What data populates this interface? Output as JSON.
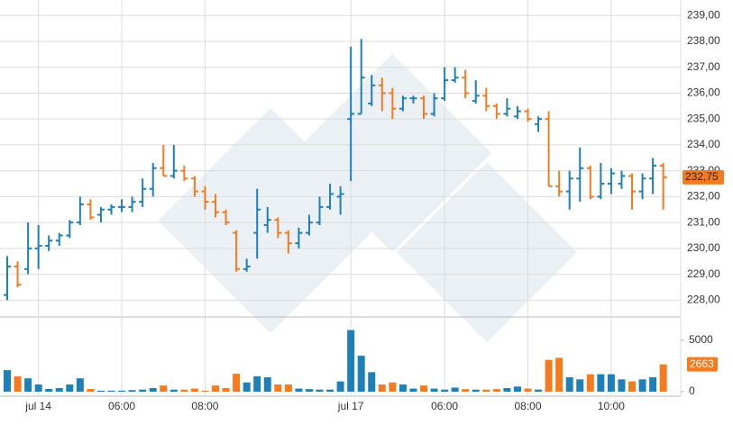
{
  "chart_data": {
    "type": "ohlc",
    "categories": [
      null,
      null,
      null,
      "jul 14",
      null,
      null,
      null,
      null,
      null,
      null,
      null,
      "06:00",
      null,
      null,
      null,
      null,
      null,
      null,
      null,
      "08:00",
      null,
      null,
      null,
      null,
      null,
      null,
      null,
      null,
      null,
      null,
      null,
      null,
      null,
      "jul 17",
      null,
      null,
      null,
      null,
      null,
      null,
      null,
      null,
      "06:00",
      null,
      null,
      null,
      null,
      null,
      null,
      null,
      "08:00",
      null,
      null,
      null,
      null,
      null,
      null,
      null,
      "10:00",
      null,
      null,
      null,
      null,
      null
    ],
    "open": [
      228.2,
      229.3,
      229.2,
      230.0,
      230.1,
      230.3,
      230.5,
      231.0,
      231.7,
      231.3,
      231.5,
      231.6,
      231.6,
      231.8,
      232.3,
      233.1,
      232.8,
      233.0,
      232.7,
      232.2,
      231.8,
      231.4,
      230.6,
      229.2,
      230.6,
      230.9,
      231.1,
      230.6,
      230.2,
      230.6,
      231.0,
      231.6,
      232.0,
      235.0,
      235.2,
      235.6,
      236.3,
      236.0,
      235.4,
      235.8,
      235.8,
      235.2,
      235.8,
      236.5,
      236.6,
      235.7,
      235.9,
      235.5,
      235.2,
      235.1,
      235.3,
      234.8,
      235.0,
      232.4,
      232.2,
      232.7,
      233.1,
      232.0,
      232.5,
      232.5,
      232.8,
      232.2,
      232.7,
      233.2
    ],
    "high": [
      229.7,
      229.5,
      231.0,
      230.9,
      230.5,
      230.6,
      231.1,
      232.0,
      231.9,
      231.6,
      231.7,
      231.9,
      232.0,
      232.7,
      233.3,
      234.0,
      234.0,
      233.2,
      232.8,
      232.4,
      232.1,
      231.5,
      230.7,
      229.6,
      232.3,
      231.6,
      231.2,
      230.7,
      230.8,
      231.3,
      232.0,
      232.5,
      232.4,
      237.8,
      238.1,
      236.7,
      236.6,
      236.2,
      235.9,
      235.9,
      235.9,
      236.0,
      237.0,
      237.0,
      236.9,
      236.5,
      236.2,
      235.6,
      235.8,
      235.5,
      235.4,
      235.1,
      235.3,
      233.0,
      233.0,
      233.9,
      233.2,
      233.3,
      233.1,
      233.0,
      232.9,
      232.9,
      233.5,
      233.3
    ],
    "low": [
      228.0,
      228.5,
      229.0,
      229.2,
      229.9,
      230.1,
      230.4,
      230.9,
      231.1,
      231.0,
      231.3,
      231.4,
      231.4,
      231.6,
      232.0,
      232.8,
      232.7,
      232.6,
      232.0,
      231.5,
      231.2,
      230.9,
      229.1,
      229.1,
      229.6,
      230.6,
      230.4,
      229.8,
      230.0,
      230.5,
      230.9,
      231.5,
      231.3,
      232.6,
      235.2,
      235.5,
      235.3,
      235.0,
      235.3,
      235.6,
      235.0,
      235.1,
      235.7,
      236.4,
      235.8,
      235.6,
      235.3,
      235.0,
      235.1,
      235.0,
      234.9,
      234.5,
      232.4,
      232.0,
      231.5,
      231.8,
      231.9,
      231.9,
      232.1,
      232.3,
      231.5,
      231.9,
      232.1,
      231.5
    ],
    "close": [
      229.3,
      228.6,
      230.0,
      230.1,
      230.3,
      230.5,
      231.0,
      231.7,
      231.2,
      231.5,
      231.6,
      231.6,
      231.8,
      232.3,
      233.1,
      232.8,
      233.0,
      232.7,
      232.2,
      231.8,
      231.4,
      231.0,
      229.2,
      229.3,
      231.5,
      231.1,
      230.6,
      230.2,
      230.6,
      231.0,
      231.6,
      232.1,
      232.1,
      235.2,
      236.6,
      236.3,
      236.0,
      235.4,
      235.8,
      235.8,
      235.2,
      235.8,
      236.5,
      236.6,
      236.0,
      235.9,
      235.5,
      235.2,
      235.4,
      235.3,
      235.0,
      235.0,
      232.4,
      232.2,
      232.7,
      233.1,
      232.0,
      232.5,
      232.9,
      232.8,
      232.2,
      232.7,
      233.2,
      232.75
    ],
    "volume": [
      2100,
      1500,
      1300,
      700,
      260,
      350,
      700,
      1300,
      260,
      90,
      100,
      100,
      150,
      200,
      350,
      600,
      200,
      200,
      300,
      100,
      600,
      350,
      1750,
      900,
      1500,
      1400,
      700,
      700,
      300,
      250,
      200,
      200,
      1000,
      6000,
      3500,
      1900,
      700,
      900,
      700,
      300,
      600,
      300,
      200,
      400,
      250,
      200,
      200,
      250,
      350,
      500,
      300,
      200,
      3100,
      3300,
      1400,
      1200,
      1700,
      1700,
      1700,
      1200,
      1000,
      1200,
      1400,
      2663
    ],
    "up_color": "#1f7fb8",
    "down_color": "#f47b20",
    "ylim": [
      227.35,
      239.6
    ],
    "yticks": [
      {
        "value": 228,
        "label": "228,00"
      },
      {
        "value": 229,
        "label": "229,00"
      },
      {
        "value": 230,
        "label": "230,00"
      },
      {
        "value": 231,
        "label": "231,00"
      },
      {
        "value": 232,
        "label": "232,00"
      },
      {
        "value": 233,
        "label": "233,00"
      },
      {
        "value": 234,
        "label": "234,00"
      },
      {
        "value": 235,
        "label": "235,00"
      },
      {
        "value": 236,
        "label": "236,00"
      },
      {
        "value": 237,
        "label": "237,00"
      },
      {
        "value": 238,
        "label": "238,00"
      },
      {
        "value": 239,
        "label": "239,00"
      }
    ],
    "volume_ylim": [
      0,
      6050
    ],
    "volume_yticks": [
      0,
      5000
    ],
    "last_price": {
      "value": 232.75,
      "label": "232,75"
    },
    "last_volume": 2663,
    "grid": true
  }
}
